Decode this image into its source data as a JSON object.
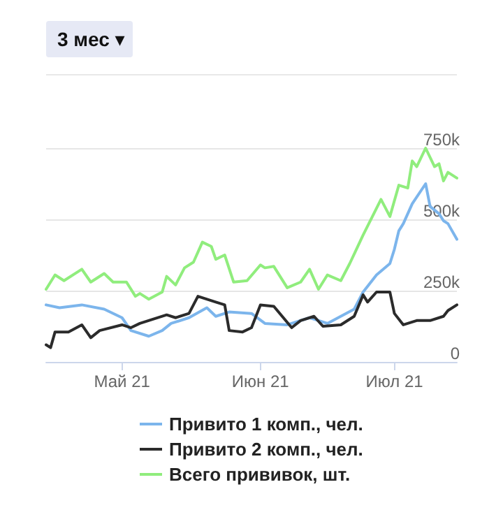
{
  "chart_data": {
    "type": "line",
    "annotations": [
      "3 мес ▾"
    ],
    "xlim": [
      "2021-04-14",
      "2021-07-15"
    ],
    "xticks": [
      {
        "value": "2021-05-01",
        "label": "Май 21"
      },
      {
        "value": "2021-06-01",
        "label": "Июн 21"
      },
      {
        "value": "2021-07-01",
        "label": "Июл 21"
      }
    ],
    "ylim": [
      0,
      750000
    ],
    "yticks": [
      {
        "value": 0,
        "label": "0"
      },
      {
        "value": 250000,
        "label": "250k"
      },
      {
        "value": 500000,
        "label": "500k"
      },
      {
        "value": 750000,
        "label": "750k"
      }
    ],
    "grid": "y",
    "legend": "bottom",
    "marker": "none",
    "line_style": "solid",
    "series": [
      {
        "name": "Привито 1 комп., чел.",
        "color": "#7cb5ec",
        "x": [
          "2021-04-14",
          "2021-04-17",
          "2021-04-22",
          "2021-04-27",
          "2021-05-01",
          "2021-05-03",
          "2021-05-07",
          "2021-05-10",
          "2021-05-12",
          "2021-05-16",
          "2021-05-20",
          "2021-05-22",
          "2021-05-25",
          "2021-05-30",
          "2021-06-02",
          "2021-06-07",
          "2021-06-12",
          "2021-06-16",
          "2021-06-19",
          "2021-06-22",
          "2021-06-24",
          "2021-06-27",
          "2021-06-30",
          "2021-07-01",
          "2021-07-02",
          "2021-07-03",
          "2021-07-05",
          "2021-07-08",
          "2021-07-09",
          "2021-07-11",
          "2021-07-12",
          "2021-07-13",
          "2021-07-15"
        ],
        "values": [
          200000,
          190000,
          200000,
          185000,
          155000,
          110000,
          90000,
          110000,
          135000,
          155000,
          190000,
          160000,
          175000,
          170000,
          135000,
          130000,
          155000,
          135000,
          160000,
          185000,
          245000,
          305000,
          345000,
          395000,
          460000,
          485000,
          555000,
          625000,
          545000,
          520000,
          495000,
          485000,
          430000
        ]
      },
      {
        "name": "Привито 2 комп., чел.",
        "color": "#2b2b2b",
        "x": [
          "2021-04-14",
          "2021-04-15",
          "2021-04-16",
          "2021-04-19",
          "2021-04-22",
          "2021-04-24",
          "2021-04-26",
          "2021-05-01",
          "2021-05-03",
          "2021-05-05",
          "2021-05-11",
          "2021-05-13",
          "2021-05-16",
          "2021-05-18",
          "2021-05-22",
          "2021-05-24",
          "2021-05-25",
          "2021-05-28",
          "2021-05-30",
          "2021-06-01",
          "2021-06-04",
          "2021-06-08",
          "2021-06-10",
          "2021-06-13",
          "2021-06-15",
          "2021-06-19",
          "2021-06-22",
          "2021-06-24",
          "2021-06-25",
          "2021-06-27",
          "2021-06-30",
          "2021-07-01",
          "2021-07-03",
          "2021-07-06",
          "2021-07-09",
          "2021-07-12",
          "2021-07-13",
          "2021-07-15"
        ],
        "values": [
          60000,
          50000,
          105000,
          105000,
          130000,
          85000,
          110000,
          130000,
          120000,
          135000,
          165000,
          155000,
          170000,
          230000,
          210000,
          200000,
          110000,
          105000,
          120000,
          200000,
          195000,
          120000,
          145000,
          160000,
          125000,
          130000,
          160000,
          235000,
          210000,
          245000,
          245000,
          170000,
          130000,
          145000,
          145000,
          160000,
          180000,
          200000
        ]
      },
      {
        "name": "Всего прививок, шт.",
        "color": "#90ed7d",
        "x": [
          "2021-04-14",
          "2021-04-16",
          "2021-04-18",
          "2021-04-22",
          "2021-04-24",
          "2021-04-27",
          "2021-04-29",
          "2021-05-02",
          "2021-05-04",
          "2021-05-05",
          "2021-05-07",
          "2021-05-10",
          "2021-05-11",
          "2021-05-13",
          "2021-05-15",
          "2021-05-17",
          "2021-05-19",
          "2021-05-21",
          "2021-05-22",
          "2021-05-24",
          "2021-05-26",
          "2021-05-29",
          "2021-06-01",
          "2021-06-02",
          "2021-06-04",
          "2021-06-07",
          "2021-06-10",
          "2021-06-12",
          "2021-06-14",
          "2021-06-16",
          "2021-06-19",
          "2021-06-21",
          "2021-06-24",
          "2021-06-28",
          "2021-06-30",
          "2021-07-02",
          "2021-07-04",
          "2021-07-05",
          "2021-07-06",
          "2021-07-08",
          "2021-07-10",
          "2021-07-11",
          "2021-07-12",
          "2021-07-13",
          "2021-07-15"
        ],
        "values": [
          255000,
          305000,
          285000,
          325000,
          280000,
          310000,
          280000,
          280000,
          230000,
          240000,
          220000,
          245000,
          300000,
          270000,
          330000,
          350000,
          420000,
          405000,
          360000,
          375000,
          280000,
          285000,
          340000,
          330000,
          335000,
          260000,
          280000,
          325000,
          255000,
          305000,
          285000,
          345000,
          445000,
          570000,
          510000,
          620000,
          610000,
          705000,
          685000,
          750000,
          685000,
          695000,
          635000,
          665000,
          645000
        ]
      }
    ]
  }
}
